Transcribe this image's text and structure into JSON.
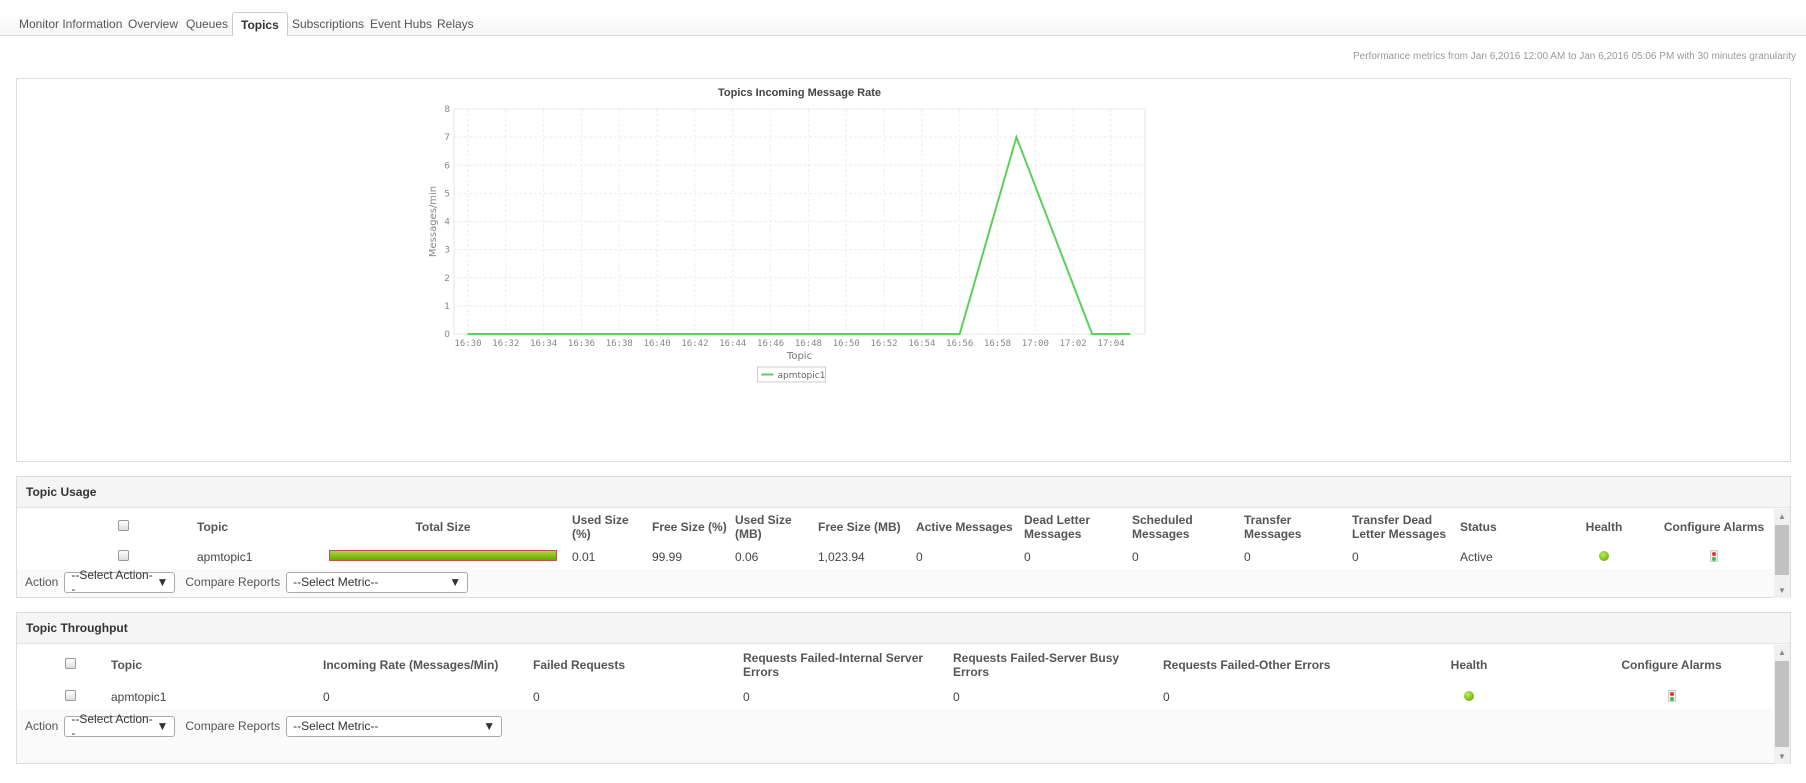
{
  "tabs": [
    {
      "label": "Monitor Information"
    },
    {
      "label": "Overview"
    },
    {
      "label": "Queues"
    },
    {
      "label": "Topics",
      "active": true
    },
    {
      "label": "Subscriptions"
    },
    {
      "label": "Event Hubs"
    },
    {
      "label": "Relays"
    }
  ],
  "performance_note": "Performance metrics from Jan 6,2016 12:00 AM to Jan 6,2016 05:06 PM with 30 minutes granularity",
  "chart_data": {
    "type": "line",
    "title": "Topics Incoming Message Rate",
    "xlabel": "Topic",
    "ylabel": "Messages/min",
    "ylim": [
      0,
      8
    ],
    "yticks": [
      0,
      1,
      2,
      3,
      4,
      5,
      6,
      7,
      8
    ],
    "xticks": [
      "16:30",
      "16:32",
      "16:34",
      "16:36",
      "16:38",
      "16:40",
      "16:42",
      "16:44",
      "16:46",
      "16:48",
      "16:50",
      "16:52",
      "16:54",
      "16:56",
      "16:58",
      "17:00",
      "17:02",
      "17:04"
    ],
    "grid": true,
    "legend_position": "bottom",
    "series": [
      {
        "name": "apmtopic1",
        "color": "#5ccf5c",
        "x": [
          "16:30",
          "16:56",
          "16:59",
          "17:03",
          "17:05"
        ],
        "values": [
          0,
          0,
          7,
          0,
          0
        ]
      }
    ]
  },
  "usage": {
    "title": "Topic Usage",
    "columns": [
      "Topic",
      "Total Size",
      "Used Size (%)",
      "Free Size  (%)",
      "Used Size (MB)",
      "Free Size  (MB)",
      "Active Messages",
      "Dead Letter Messages",
      "Scheduled Messages",
      "Transfer Messages",
      "Transfer Dead Letter Messages",
      "Status",
      "Health",
      "Configure Alarms"
    ],
    "rows": [
      {
        "topic": "apmtopic1",
        "total_size_used_fraction": 0.0001,
        "used_pct": "0.01",
        "free_pct": "99.99",
        "used_mb": "0.06",
        "free_mb": "1,023.94",
        "active": "0",
        "dead_letter": "0",
        "scheduled": "0",
        "transfer": "0",
        "transfer_dead": "0",
        "status": "Active",
        "health": "clear"
      }
    ],
    "action_label": "Action",
    "action_value": "--Select Action--",
    "compare_label": "Compare Reports",
    "compare_value": "--Select Metric--"
  },
  "throughput": {
    "title": "Topic Throughput",
    "columns": [
      "Topic",
      "Incoming Rate  (Messages/Min)",
      "Failed Requests",
      "Requests Failed-Internal Server Errors",
      "Requests Failed-Server Busy Errors",
      "Requests Failed-Other Errors",
      "Health",
      "Configure Alarms"
    ],
    "rows": [
      {
        "topic": "apmtopic1",
        "incoming": "0",
        "failed": "0",
        "internal": "0",
        "busy": "0",
        "other": "0",
        "health": "clear"
      }
    ],
    "action_label": "Action",
    "action_value": "--Select Action--",
    "compare_label": "Compare Reports",
    "compare_value": "--Select Metric--"
  },
  "colors": {
    "health_ok": "#6ab800",
    "series": "#5ccf5c"
  }
}
